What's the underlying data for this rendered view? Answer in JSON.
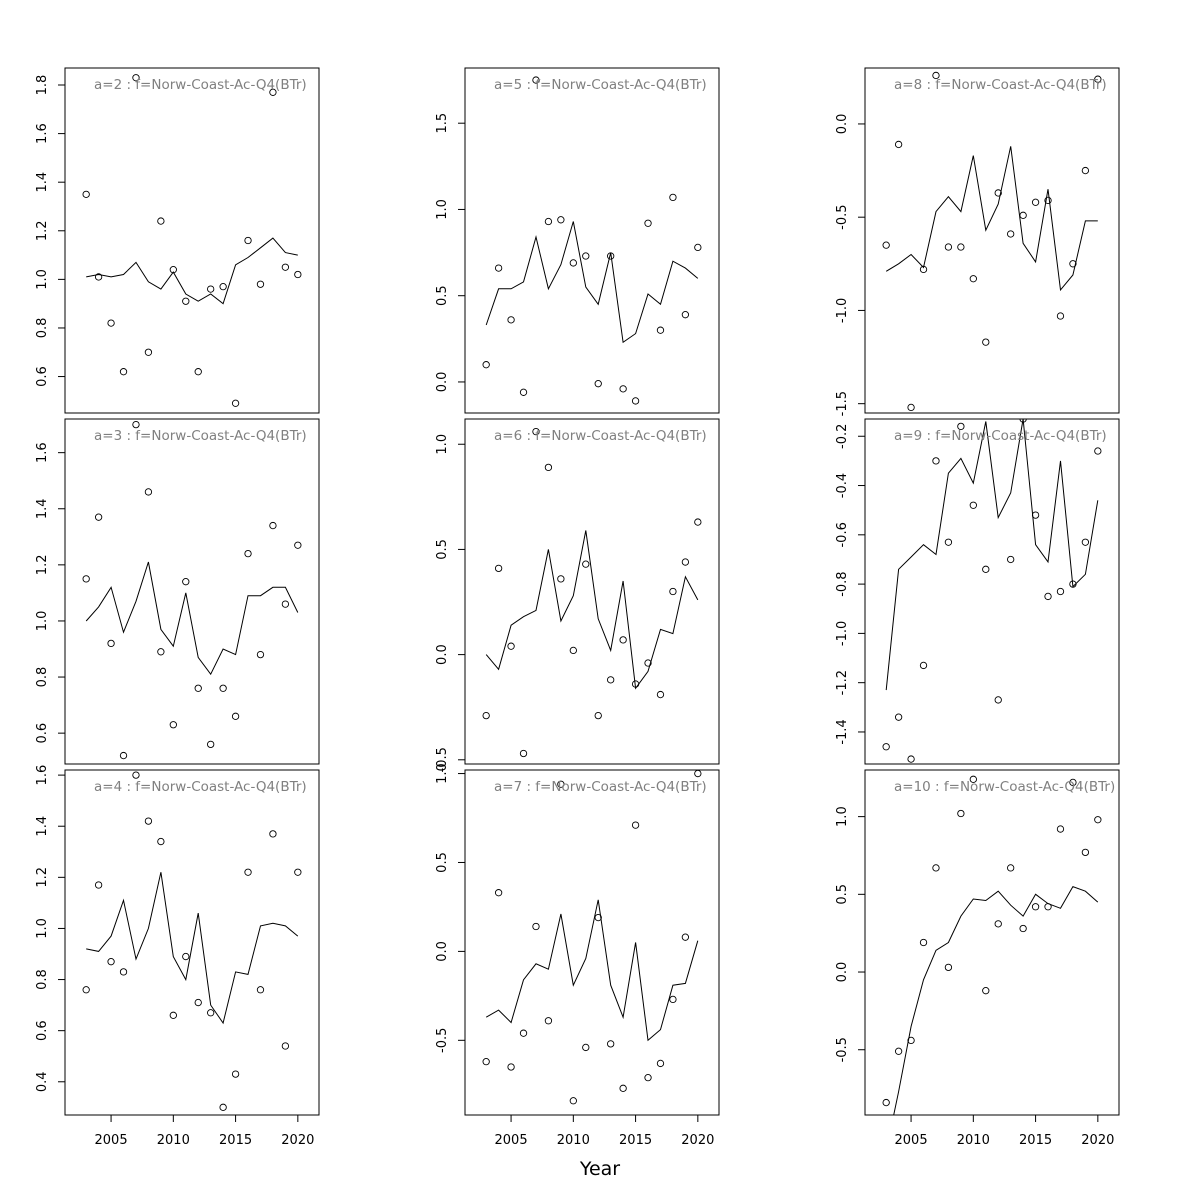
{
  "figure": {
    "xlabel": "Year"
  },
  "chart_data": [
    {
      "type": "line",
      "title": "a=2  :  f=Norw-Coast-Ac-Q4(BTr)",
      "xlim": [
        2001.3,
        2021.7
      ],
      "ylim": [
        0.45,
        1.87
      ],
      "yticks": [
        0.6,
        0.8,
        1.0,
        1.2,
        1.4,
        1.6,
        1.8
      ],
      "xticks": [
        2005,
        2010,
        2015,
        2020
      ],
      "x": [
        2003,
        2004,
        2005,
        2006,
        2007,
        2008,
        2009,
        2010,
        2011,
        2012,
        2013,
        2014,
        2015,
        2016,
        2017,
        2018,
        2019,
        2020
      ],
      "series": [
        {
          "role": "fitted",
          "style": "line",
          "values": [
            1.01,
            1.02,
            1.01,
            1.02,
            1.07,
            0.99,
            0.96,
            1.03,
            0.94,
            0.91,
            0.94,
            0.9,
            1.06,
            1.09,
            1.13,
            1.17,
            1.11,
            1.1
          ]
        },
        {
          "role": "observed",
          "style": "points",
          "values": [
            1.35,
            1.01,
            0.82,
            0.62,
            1.83,
            0.7,
            1.24,
            1.04,
            0.91,
            0.62,
            0.96,
            0.97,
            0.49,
            1.16,
            0.98,
            1.77,
            1.05,
            1.02
          ]
        }
      ]
    },
    {
      "type": "line",
      "title": "a=5  :  f=Norw-Coast-Ac-Q4(BTr)",
      "xlim": [
        2001.3,
        2021.7
      ],
      "ylim": [
        -0.18,
        1.82
      ],
      "yticks": [
        0.0,
        0.5,
        1.0,
        1.5
      ],
      "xticks": [
        2005,
        2010,
        2015,
        2020
      ],
      "x": [
        2003,
        2004,
        2005,
        2006,
        2007,
        2008,
        2009,
        2010,
        2011,
        2012,
        2013,
        2014,
        2015,
        2016,
        2017,
        2018,
        2019,
        2020
      ],
      "series": [
        {
          "role": "fitted",
          "style": "line",
          "values": [
            0.33,
            0.54,
            0.54,
            0.58,
            0.84,
            0.54,
            0.68,
            0.93,
            0.55,
            0.45,
            0.75,
            0.23,
            0.28,
            0.51,
            0.45,
            0.7,
            0.66,
            0.6
          ]
        },
        {
          "role": "observed",
          "style": "points",
          "values": [
            0.1,
            0.66,
            0.36,
            -0.06,
            1.75,
            0.93,
            0.94,
            0.69,
            0.73,
            -0.01,
            0.73,
            -0.04,
            -0.11,
            0.92,
            0.3,
            1.07,
            0.39,
            0.78
          ]
        }
      ]
    },
    {
      "type": "line",
      "title": "a=8  :  f=Norw-Coast-Ac-Q4(BTr)",
      "xlim": [
        2001.3,
        2021.7
      ],
      "ylim": [
        -1.55,
        0.3
      ],
      "yticks": [
        -1.5,
        -1.0,
        -0.5,
        0.0
      ],
      "xticks": [
        2005,
        2010,
        2015,
        2020
      ],
      "x": [
        2003,
        2004,
        2005,
        2006,
        2007,
        2008,
        2009,
        2010,
        2011,
        2012,
        2013,
        2014,
        2015,
        2016,
        2017,
        2018,
        2019,
        2020
      ],
      "series": [
        {
          "role": "fitted",
          "style": "line",
          "values": [
            -0.79,
            -0.75,
            -0.7,
            -0.77,
            -0.47,
            -0.39,
            -0.47,
            -0.17,
            -0.57,
            -0.43,
            -0.12,
            -0.64,
            -0.74,
            -0.35,
            -0.89,
            -0.81,
            -0.52,
            -0.52
          ]
        },
        {
          "role": "observed",
          "style": "points",
          "values": [
            -0.65,
            -0.11,
            -1.52,
            -0.78,
            0.26,
            -0.66,
            -0.66,
            -0.83,
            -1.17,
            -0.37,
            -0.59,
            -0.49,
            -0.42,
            -0.41,
            -1.03,
            -0.75,
            -0.25,
            0.24
          ]
        }
      ]
    },
    {
      "type": "line",
      "title": "a=3  :  f=Norw-Coast-Ac-Q4(BTr)",
      "xlim": [
        2001.3,
        2021.7
      ],
      "ylim": [
        0.49,
        1.72
      ],
      "yticks": [
        0.6,
        0.8,
        1.0,
        1.2,
        1.4,
        1.6
      ],
      "xticks": [
        2005,
        2010,
        2015,
        2020
      ],
      "x": [
        2003,
        2004,
        2005,
        2006,
        2007,
        2008,
        2009,
        2010,
        2011,
        2012,
        2013,
        2014,
        2015,
        2016,
        2017,
        2018,
        2019,
        2020
      ],
      "series": [
        {
          "role": "fitted",
          "style": "line",
          "values": [
            1.0,
            1.05,
            1.12,
            0.96,
            1.07,
            1.21,
            0.97,
            0.91,
            1.1,
            0.87,
            0.81,
            0.9,
            0.88,
            1.09,
            1.09,
            1.12,
            1.12,
            1.03
          ]
        },
        {
          "role": "observed",
          "style": "points",
          "values": [
            1.15,
            1.37,
            0.92,
            0.52,
            1.7,
            1.46,
            0.89,
            0.63,
            1.14,
            0.76,
            0.56,
            0.76,
            0.66,
            1.24,
            0.88,
            1.34,
            1.06,
            1.27
          ]
        }
      ]
    },
    {
      "type": "line",
      "title": "a=6  :  f=Norw-Coast-Ac-Q4(BTr)",
      "xlim": [
        2001.3,
        2021.7
      ],
      "ylim": [
        -0.52,
        1.12
      ],
      "yticks": [
        -0.5,
        0.0,
        0.5,
        1.0
      ],
      "xticks": [
        2005,
        2010,
        2015,
        2020
      ],
      "x": [
        2003,
        2004,
        2005,
        2006,
        2007,
        2008,
        2009,
        2010,
        2011,
        2012,
        2013,
        2014,
        2015,
        2016,
        2017,
        2018,
        2019,
        2020
      ],
      "series": [
        {
          "role": "fitted",
          "style": "line",
          "values": [
            0.0,
            -0.07,
            0.14,
            0.18,
            0.21,
            0.5,
            0.16,
            0.28,
            0.59,
            0.17,
            0.02,
            0.35,
            -0.16,
            -0.08,
            0.12,
            0.1,
            0.37,
            0.26
          ]
        },
        {
          "role": "observed",
          "style": "points",
          "values": [
            -0.29,
            0.41,
            0.04,
            -0.47,
            1.06,
            0.89,
            0.36,
            0.02,
            0.43,
            -0.29,
            -0.12,
            0.07,
            -0.14,
            -0.04,
            -0.19,
            0.3,
            0.44,
            0.63
          ]
        }
      ]
    },
    {
      "type": "line",
      "title": "a=9  :  f=Norw-Coast-Ac-Q4(BTr)",
      "xlim": [
        2001.3,
        2021.7
      ],
      "ylim": [
        -1.53,
        -0.13
      ],
      "yticks": [
        -1.4,
        -1.2,
        -1.0,
        -0.8,
        -0.6,
        -0.4,
        -0.2
      ],
      "xticks": [
        2005,
        2010,
        2015,
        2020
      ],
      "x": [
        2003,
        2004,
        2005,
        2006,
        2007,
        2008,
        2009,
        2010,
        2011,
        2012,
        2013,
        2014,
        2015,
        2016,
        2017,
        2018,
        2019,
        2020
      ],
      "series": [
        {
          "role": "fitted",
          "style": "line",
          "values": [
            -1.23,
            -0.74,
            -0.69,
            -0.64,
            -0.68,
            -0.35,
            -0.29,
            -0.39,
            -0.14,
            -0.53,
            -0.43,
            -0.13,
            -0.64,
            -0.71,
            -0.3,
            -0.81,
            -0.76,
            -0.46
          ]
        },
        {
          "role": "observed",
          "style": "points",
          "values": [
            -1.46,
            -1.34,
            -1.51,
            -1.13,
            -0.3,
            -0.63,
            -0.16,
            -0.48,
            -0.74,
            -1.27,
            -0.7,
            -0.13,
            -0.52,
            -0.85,
            -0.83,
            -0.8,
            -0.63,
            -0.26
          ]
        }
      ]
    },
    {
      "type": "line",
      "title": "a=4  :  f=Norw-Coast-Ac-Q4(BTr)",
      "xlim": [
        2001.3,
        2021.7
      ],
      "ylim": [
        0.27,
        1.62
      ],
      "yticks": [
        0.4,
        0.6,
        0.8,
        1.0,
        1.2,
        1.4,
        1.6
      ],
      "xticks": [
        2005,
        2010,
        2015,
        2020
      ],
      "x": [
        2003,
        2004,
        2005,
        2006,
        2007,
        2008,
        2009,
        2010,
        2011,
        2012,
        2013,
        2014,
        2015,
        2016,
        2017,
        2018,
        2019,
        2020
      ],
      "series": [
        {
          "role": "fitted",
          "style": "line",
          "values": [
            0.92,
            0.91,
            0.97,
            1.11,
            0.88,
            1.0,
            1.22,
            0.89,
            0.8,
            1.06,
            0.7,
            0.63,
            0.83,
            0.82,
            1.01,
            1.02,
            1.01,
            0.97
          ]
        },
        {
          "role": "observed",
          "style": "points",
          "values": [
            0.76,
            1.17,
            0.87,
            0.83,
            1.6,
            1.42,
            1.34,
            0.66,
            0.89,
            0.71,
            0.67,
            0.3,
            0.43,
            1.22,
            0.76,
            1.37,
            0.54,
            1.22
          ]
        }
      ]
    },
    {
      "type": "line",
      "title": "a=7  :  f=Norw-Coast-Ac-Q4(BTr)",
      "xlim": [
        2001.3,
        2021.7
      ],
      "ylim": [
        -0.92,
        1.02
      ],
      "yticks": [
        -0.5,
        0.0,
        0.5,
        1.0
      ],
      "xticks": [
        2005,
        2010,
        2015,
        2020
      ],
      "x": [
        2003,
        2004,
        2005,
        2006,
        2007,
        2008,
        2009,
        2010,
        2011,
        2012,
        2013,
        2014,
        2015,
        2016,
        2017,
        2018,
        2019,
        2020
      ],
      "series": [
        {
          "role": "fitted",
          "style": "line",
          "values": [
            -0.37,
            -0.33,
            -0.4,
            -0.16,
            -0.07,
            -0.1,
            0.21,
            -0.19,
            -0.04,
            0.29,
            -0.19,
            -0.37,
            0.05,
            -0.5,
            -0.44,
            -0.19,
            -0.18,
            0.06
          ]
        },
        {
          "role": "observed",
          "style": "points",
          "values": [
            -0.62,
            0.33,
            -0.65,
            -0.46,
            0.14,
            -0.39,
            0.94,
            -0.84,
            -0.54,
            0.19,
            -0.52,
            -0.77,
            0.71,
            -0.71,
            -0.63,
            -0.27,
            0.08,
            1.0
          ]
        }
      ]
    },
    {
      "type": "line",
      "title": "a=10  :  f=Norw-Coast-Ac-Q4(BTr)",
      "xlim": [
        2001.3,
        2021.7
      ],
      "ylim": [
        -0.92,
        1.3
      ],
      "yticks": [
        -0.5,
        0.0,
        0.5,
        1.0
      ],
      "xticks": [
        2005,
        2010,
        2015,
        2020
      ],
      "x": [
        2003,
        2004,
        2005,
        2006,
        2007,
        2008,
        2009,
        2010,
        2011,
        2012,
        2013,
        2014,
        2015,
        2016,
        2017,
        2018,
        2019,
        2020
      ],
      "series": [
        {
          "role": "fitted",
          "style": "line",
          "values": [
            -1.15,
            -0.77,
            -0.35,
            -0.05,
            0.14,
            0.19,
            0.36,
            0.47,
            0.46,
            0.52,
            0.43,
            0.36,
            0.5,
            0.44,
            0.41,
            0.55,
            0.52,
            0.45
          ]
        },
        {
          "role": "observed",
          "style": "points",
          "values": [
            -0.84,
            -0.51,
            -0.44,
            0.19,
            0.67,
            0.03,
            1.02,
            1.24,
            -0.12,
            0.31,
            0.67,
            0.28,
            0.42,
            0.42,
            0.92,
            1.22,
            0.77,
            0.98
          ]
        }
      ]
    }
  ]
}
